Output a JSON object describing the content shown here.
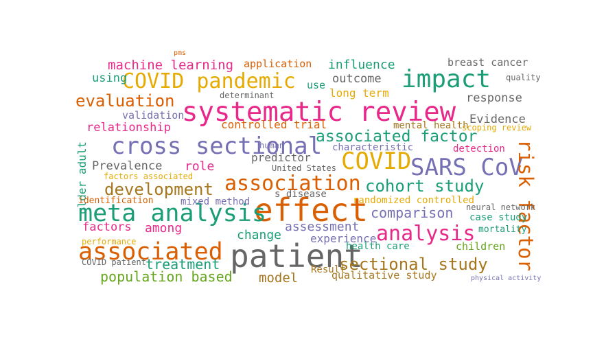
{
  "palette": [
    "#1b9e77",
    "#d95f02",
    "#7570b3",
    "#e7298a",
    "#66a61e",
    "#e6ab02",
    "#a6761d",
    "#666666"
  ],
  "words": [
    {
      "text": "systematic review",
      "color": "#e7298a"
    },
    {
      "text": "effect",
      "color": "#d95f02"
    },
    {
      "text": "patient",
      "color": "#666666"
    },
    {
      "text": "cross sectional",
      "color": "#7570b3"
    },
    {
      "text": "meta analysis",
      "color": "#1b9e77"
    },
    {
      "text": "impact",
      "color": "#1b9e77"
    },
    {
      "text": "COVID pandemic",
      "color": "#e6ab02"
    },
    {
      "text": "COVID",
      "color": "#e6ab02"
    },
    {
      "text": "SARS CoV",
      "color": "#7570b3"
    },
    {
      "text": "associated",
      "color": "#d95f02"
    },
    {
      "text": "association",
      "color": "#d95f02"
    },
    {
      "text": "cohort study",
      "color": "#1b9e77"
    },
    {
      "text": "analysis",
      "color": "#e7298a"
    },
    {
      "text": "sectional study",
      "color": "#a6761d"
    },
    {
      "text": "risk factor",
      "color": "#d95f02"
    },
    {
      "text": "development",
      "color": "#a6761d"
    },
    {
      "text": "evaluation",
      "color": "#d95f02"
    },
    {
      "text": "associated factor",
      "color": "#1b9e77"
    },
    {
      "text": "machine learning",
      "color": "#e7298a"
    },
    {
      "text": "influence",
      "color": "#1b9e77"
    },
    {
      "text": "breast cancer",
      "color": "#666666"
    },
    {
      "text": "application",
      "color": "#d95f02"
    },
    {
      "text": "using",
      "color": "#1b9e77"
    },
    {
      "text": "use",
      "color": "#1b9e77"
    },
    {
      "text": "outcome",
      "color": "#666666"
    },
    {
      "text": "long term",
      "color": "#e6ab02"
    },
    {
      "text": "response",
      "color": "#666666"
    },
    {
      "text": "quality",
      "color": "#666666"
    },
    {
      "text": "Evidence",
      "color": "#666666"
    },
    {
      "text": "relationship",
      "color": "#e7298a"
    },
    {
      "text": "validation",
      "color": "#7570b3"
    },
    {
      "text": "determinant",
      "color": "#666666"
    },
    {
      "text": "controlled trial",
      "color": "#d95f02"
    },
    {
      "text": "mental health",
      "color": "#a6761d"
    },
    {
      "text": "characteristic",
      "color": "#7570b3"
    },
    {
      "text": "predictor",
      "color": "#666666"
    },
    {
      "text": "United States",
      "color": "#666666"
    },
    {
      "text": "human",
      "color": "#7570b3"
    },
    {
      "text": "Prevalence",
      "color": "#666666"
    },
    {
      "text": "role",
      "color": "#e7298a"
    },
    {
      "text": "older adult",
      "color": "#1b9e77"
    },
    {
      "text": "detection",
      "color": "#e7298a"
    },
    {
      "text": "scoping review",
      "color": "#e6ab02"
    },
    {
      "text": "factors associated",
      "color": "#e6ab02"
    },
    {
      "text": "identification",
      "color": "#d95f02"
    },
    {
      "text": "mixed method",
      "color": "#7570b3"
    },
    {
      "text": "s disease",
      "color": "#666666"
    },
    {
      "text": "randomized controlled",
      "color": "#e6ab02"
    },
    {
      "text": "comparison",
      "color": "#7570b3"
    },
    {
      "text": "case study",
      "color": "#1b9e77"
    },
    {
      "text": "neural network",
      "color": "#666666"
    },
    {
      "text": "factors",
      "color": "#e7298a"
    },
    {
      "text": "among",
      "color": "#e7298a"
    },
    {
      "text": "assessment",
      "color": "#7570b3"
    },
    {
      "text": "change",
      "color": "#1b9e77"
    },
    {
      "text": "experience",
      "color": "#7570b3"
    },
    {
      "text": "mortality",
      "color": "#1b9e77"
    },
    {
      "text": "health care",
      "color": "#1b9e77"
    },
    {
      "text": "children",
      "color": "#66a61e"
    },
    {
      "text": "performance",
      "color": "#e6ab02"
    },
    {
      "text": "treatment",
      "color": "#1b9e77"
    },
    {
      "text": "population based",
      "color": "#66a61e"
    },
    {
      "text": "model",
      "color": "#a6761d"
    },
    {
      "text": "qualitative study",
      "color": "#a6761d"
    },
    {
      "text": "Result",
      "color": "#a6761d"
    },
    {
      "text": "COVID patient",
      "color": "#666666"
    },
    {
      "text": "physical activity",
      "color": "#7570b3"
    },
    {
      "text": "pms",
      "color": "#d95f02"
    }
  ]
}
